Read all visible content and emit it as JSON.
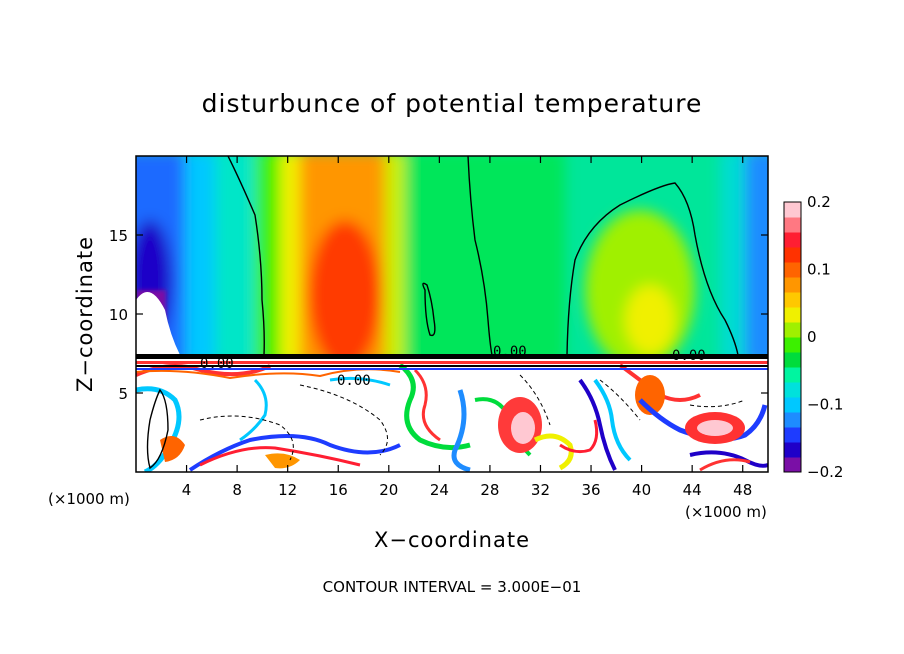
{
  "chart_data": {
    "type": "heatmap",
    "title": "disturbunce of potential temperature",
    "xlabel": "X−coordinate",
    "ylabel": "Z−coordinate",
    "x_unit": "(×1000 m)",
    "xlim": [
      0,
      50
    ],
    "ylim": [
      0,
      20
    ],
    "x_ticks": [
      "4",
      "8",
      "12",
      "16",
      "20",
      "24",
      "28",
      "32",
      "36",
      "40",
      "44",
      "48"
    ],
    "y_ticks": [
      "5",
      "10",
      "15"
    ],
    "colorbar": {
      "range": [
        -0.2,
        0.2
      ],
      "tick_labels": [
        "0.2",
        "0.1",
        "0",
        "−0.1",
        "−0.2"
      ],
      "colors": [
        "#7a0fa6",
        "#1f00c8",
        "#1e3cff",
        "#1e8cff",
        "#00c8ff",
        "#00e1dc",
        "#00f5a0",
        "#00dc3c",
        "#3cf000",
        "#a0f000",
        "#f0f000",
        "#ffc800",
        "#ff9600",
        "#ff6400",
        "#ff3200",
        "#ff1e32",
        "#ff7882",
        "#ffc8d2"
      ]
    },
    "contour_labels": [
      "0.00",
      "0.00",
      "0.00",
      "0.00"
    ],
    "footer": "CONTOUR INTERVAL = 3.000E−01"
  }
}
